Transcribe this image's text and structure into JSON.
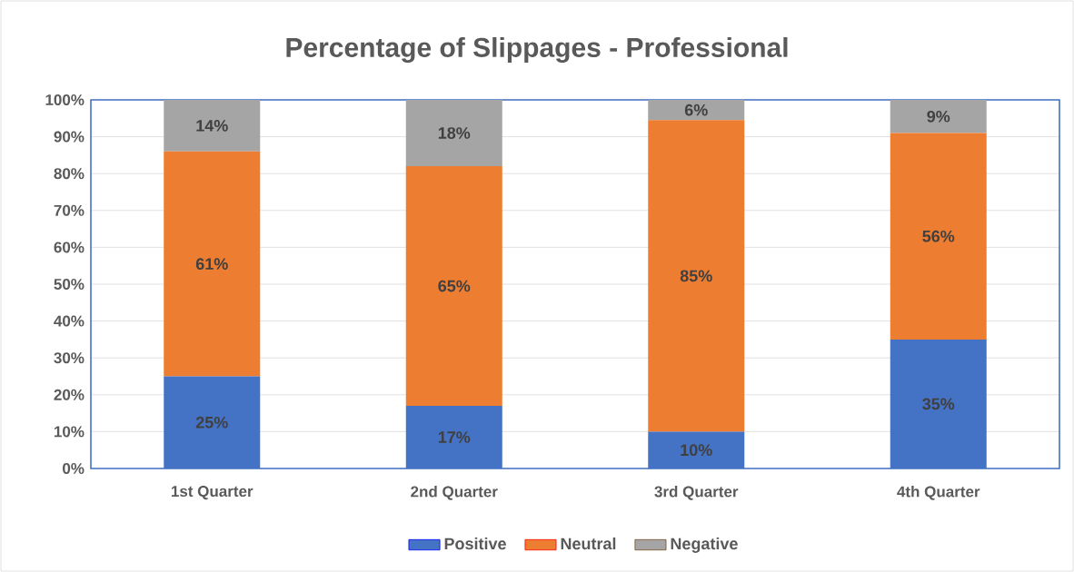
{
  "chart_data": {
    "type": "bar",
    "stacked": true,
    "title": "Percentage of Slippages - Professional",
    "categories": [
      "1st Quarter",
      "2nd Quarter",
      "3rd Quarter",
      "4th Quarter"
    ],
    "series": [
      {
        "name": "Positive",
        "color": "#4472c4",
        "values": [
          25,
          17,
          10,
          35
        ],
        "value_labels": [
          "25%",
          "17%",
          "10%",
          "35%"
        ]
      },
      {
        "name": "Neutral",
        "color": "#ed7d31",
        "values": [
          61,
          65,
          84.5,
          56
        ],
        "value_labels": [
          "61%",
          "65%",
          "85%",
          "56%"
        ]
      },
      {
        "name": "Negative",
        "color": "#a5a5a5",
        "values": [
          14,
          18,
          5.5,
          9
        ],
        "value_labels": [
          "14%",
          "18%",
          "6%",
          "9%"
        ]
      }
    ],
    "ylim": [
      0,
      100
    ],
    "yticks": [
      {
        "value": 0,
        "label": "0%"
      },
      {
        "value": 10,
        "label": "10%"
      },
      {
        "value": 20,
        "label": "20%"
      },
      {
        "value": 30,
        "label": "30%"
      },
      {
        "value": 40,
        "label": "40%"
      },
      {
        "value": 50,
        "label": "50%"
      },
      {
        "value": 60,
        "label": "60%"
      },
      {
        "value": 70,
        "label": "70%"
      },
      {
        "value": 80,
        "label": "80%"
      },
      {
        "value": 90,
        "label": "90%"
      },
      {
        "value": 100,
        "label": "100%"
      }
    ],
    "grid": "y",
    "legend": "bottom"
  }
}
